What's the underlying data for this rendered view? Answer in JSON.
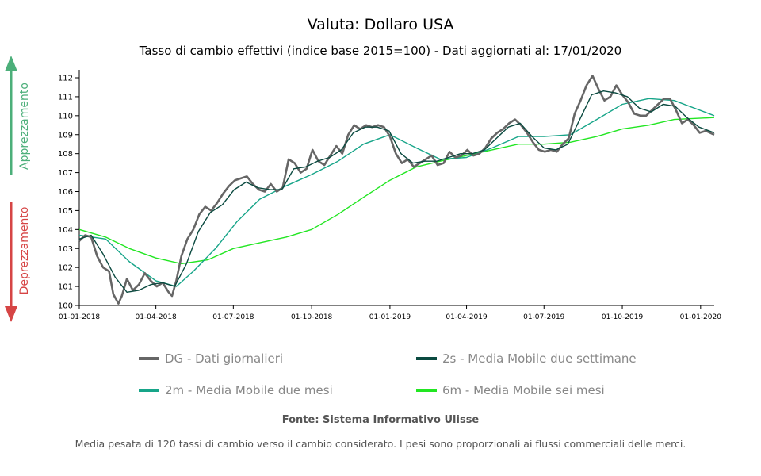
{
  "chart_data": {
    "type": "line",
    "title": "Valuta: Dollaro USA",
    "subtitle": "Tasso di cambio effettivi (indice base 2015=100) - Dati aggiornati al: 17/01/2020",
    "side_labels": {
      "up": "Apprezzamento",
      "down": "Deprezzamento"
    },
    "ylim": [
      100,
      112
    ],
    "yticks": [
      100,
      101,
      102,
      103,
      104,
      105,
      106,
      107,
      108,
      109,
      110,
      111,
      112
    ],
    "x_range": [
      "01-01-2018",
      "17-01-2020"
    ],
    "xticks": [
      "01-01-2018",
      "01-04-2018",
      "01-07-2018",
      "01-10-2018",
      "01-01-2019",
      "01-04-2019",
      "01-07-2019",
      "01-10-2019",
      "01-01-2020"
    ],
    "grid": false,
    "legend_position": "bottom",
    "colors": {
      "DG": "#666666",
      "2s": "#0b4a40",
      "2m": "#17a589",
      "6m": "#22e622",
      "up_arrow": "#4caf7a",
      "down_arrow": "#d64545"
    },
    "series": [
      {
        "key": "DG",
        "name": "DG - Dati giornalieri",
        "points": [
          [
            "2018-01-01",
            103.4
          ],
          [
            "2018-01-08",
            103.7
          ],
          [
            "2018-01-15",
            103.6
          ],
          [
            "2018-01-22",
            102.6
          ],
          [
            "2018-01-29",
            102.0
          ],
          [
            "2018-02-05",
            101.8
          ],
          [
            "2018-02-10",
            100.6
          ],
          [
            "2018-02-16",
            100.1
          ],
          [
            "2018-02-20",
            100.5
          ],
          [
            "2018-02-26",
            101.4
          ],
          [
            "2018-03-05",
            100.8
          ],
          [
            "2018-03-12",
            101.1
          ],
          [
            "2018-03-19",
            101.7
          ],
          [
            "2018-03-26",
            101.3
          ],
          [
            "2018-04-02",
            101.0
          ],
          [
            "2018-04-09",
            101.2
          ],
          [
            "2018-04-16",
            100.7
          ],
          [
            "2018-04-20",
            100.5
          ],
          [
            "2018-04-25",
            101.3
          ],
          [
            "2018-05-01",
            102.6
          ],
          [
            "2018-05-08",
            103.5
          ],
          [
            "2018-05-15",
            104.0
          ],
          [
            "2018-05-22",
            104.8
          ],
          [
            "2018-05-29",
            105.2
          ],
          [
            "2018-06-05",
            105.0
          ],
          [
            "2018-06-12",
            105.4
          ],
          [
            "2018-06-19",
            105.9
          ],
          [
            "2018-06-26",
            106.3
          ],
          [
            "2018-07-03",
            106.6
          ],
          [
            "2018-07-10",
            106.7
          ],
          [
            "2018-07-17",
            106.8
          ],
          [
            "2018-07-24",
            106.4
          ],
          [
            "2018-07-31",
            106.1
          ],
          [
            "2018-08-07",
            106.0
          ],
          [
            "2018-08-14",
            106.4
          ],
          [
            "2018-08-21",
            106.0
          ],
          [
            "2018-08-28",
            106.2
          ],
          [
            "2018-09-04",
            107.7
          ],
          [
            "2018-09-11",
            107.5
          ],
          [
            "2018-09-18",
            107.0
          ],
          [
            "2018-09-25",
            107.2
          ],
          [
            "2018-10-02",
            108.2
          ],
          [
            "2018-10-09",
            107.6
          ],
          [
            "2018-10-16",
            107.4
          ],
          [
            "2018-10-23",
            107.9
          ],
          [
            "2018-10-30",
            108.4
          ],
          [
            "2018-11-06",
            108.0
          ],
          [
            "2018-11-13",
            109.0
          ],
          [
            "2018-11-20",
            109.5
          ],
          [
            "2018-11-27",
            109.3
          ],
          [
            "2018-12-04",
            109.5
          ],
          [
            "2018-12-11",
            109.4
          ],
          [
            "2018-12-18",
            109.5
          ],
          [
            "2018-12-25",
            109.4
          ],
          [
            "2019-01-01",
            108.9
          ],
          [
            "2019-01-08",
            108.0
          ],
          [
            "2019-01-15",
            107.5
          ],
          [
            "2019-01-22",
            107.7
          ],
          [
            "2019-01-29",
            107.3
          ],
          [
            "2019-02-05",
            107.5
          ],
          [
            "2019-02-12",
            107.7
          ],
          [
            "2019-02-19",
            107.9
          ],
          [
            "2019-02-26",
            107.4
          ],
          [
            "2019-03-05",
            107.5
          ],
          [
            "2019-03-12",
            108.1
          ],
          [
            "2019-03-19",
            107.8
          ],
          [
            "2019-03-26",
            107.9
          ],
          [
            "2019-04-02",
            108.2
          ],
          [
            "2019-04-09",
            107.9
          ],
          [
            "2019-04-16",
            108.0
          ],
          [
            "2019-04-23",
            108.3
          ],
          [
            "2019-04-30",
            108.8
          ],
          [
            "2019-05-07",
            109.1
          ],
          [
            "2019-05-14",
            109.3
          ],
          [
            "2019-05-21",
            109.6
          ],
          [
            "2019-05-28",
            109.8
          ],
          [
            "2019-06-04",
            109.5
          ],
          [
            "2019-06-11",
            109.1
          ],
          [
            "2019-06-18",
            108.6
          ],
          [
            "2019-06-25",
            108.2
          ],
          [
            "2019-07-02",
            108.1
          ],
          [
            "2019-07-09",
            108.2
          ],
          [
            "2019-07-16",
            108.1
          ],
          [
            "2019-07-23",
            108.5
          ],
          [
            "2019-07-30",
            108.8
          ],
          [
            "2019-08-06",
            110.1
          ],
          [
            "2019-08-13",
            110.8
          ],
          [
            "2019-08-20",
            111.6
          ],
          [
            "2019-08-27",
            112.1
          ],
          [
            "2019-09-03",
            111.4
          ],
          [
            "2019-09-10",
            110.8
          ],
          [
            "2019-09-17",
            111.0
          ],
          [
            "2019-09-24",
            111.6
          ],
          [
            "2019-10-01",
            111.1
          ],
          [
            "2019-10-08",
            110.7
          ],
          [
            "2019-10-15",
            110.1
          ],
          [
            "2019-10-22",
            110.0
          ],
          [
            "2019-10-29",
            110.0
          ],
          [
            "2019-11-05",
            110.3
          ],
          [
            "2019-11-12",
            110.6
          ],
          [
            "2019-11-19",
            110.9
          ],
          [
            "2019-11-26",
            110.9
          ],
          [
            "2019-12-03",
            110.3
          ],
          [
            "2019-12-10",
            109.6
          ],
          [
            "2019-12-17",
            109.8
          ],
          [
            "2019-12-24",
            109.5
          ],
          [
            "2019-12-31",
            109.1
          ],
          [
            "2020-01-07",
            109.2
          ],
          [
            "2020-01-17",
            109.0
          ]
        ]
      },
      {
        "key": "2s",
        "name": "2s - Media Mobile due settimane",
        "points": [
          [
            "2018-01-01",
            103.5
          ],
          [
            "2018-01-15",
            103.7
          ],
          [
            "2018-01-29",
            102.7
          ],
          [
            "2018-02-12",
            101.5
          ],
          [
            "2018-02-26",
            100.7
          ],
          [
            "2018-03-12",
            100.8
          ],
          [
            "2018-03-26",
            101.1
          ],
          [
            "2018-04-09",
            101.2
          ],
          [
            "2018-04-23",
            101.0
          ],
          [
            "2018-05-07",
            102.2
          ],
          [
            "2018-05-21",
            103.9
          ],
          [
            "2018-06-04",
            104.9
          ],
          [
            "2018-06-18",
            105.3
          ],
          [
            "2018-07-02",
            106.1
          ],
          [
            "2018-07-16",
            106.5
          ],
          [
            "2018-07-30",
            106.2
          ],
          [
            "2018-08-13",
            106.1
          ],
          [
            "2018-08-27",
            106.1
          ],
          [
            "2018-09-10",
            107.2
          ],
          [
            "2018-09-24",
            107.3
          ],
          [
            "2018-10-08",
            107.6
          ],
          [
            "2018-10-22",
            107.8
          ],
          [
            "2018-11-05",
            108.2
          ],
          [
            "2018-11-19",
            109.1
          ],
          [
            "2018-12-03",
            109.4
          ],
          [
            "2018-12-17",
            109.4
          ],
          [
            "2018-12-31",
            109.2
          ],
          [
            "2019-01-14",
            108.0
          ],
          [
            "2019-01-28",
            107.5
          ],
          [
            "2019-02-11",
            107.6
          ],
          [
            "2019-02-25",
            107.6
          ],
          [
            "2019-03-11",
            107.8
          ],
          [
            "2019-03-25",
            108.0
          ],
          [
            "2019-04-08",
            108.0
          ],
          [
            "2019-04-22",
            108.2
          ],
          [
            "2019-05-06",
            108.8
          ],
          [
            "2019-05-20",
            109.4
          ],
          [
            "2019-06-03",
            109.6
          ],
          [
            "2019-06-17",
            108.9
          ],
          [
            "2019-07-01",
            108.3
          ],
          [
            "2019-07-15",
            108.2
          ],
          [
            "2019-07-29",
            108.5
          ],
          [
            "2019-08-12",
            109.8
          ],
          [
            "2019-08-26",
            111.1
          ],
          [
            "2019-09-09",
            111.3
          ],
          [
            "2019-09-23",
            111.2
          ],
          [
            "2019-10-07",
            111.0
          ],
          [
            "2019-10-21",
            110.4
          ],
          [
            "2019-11-04",
            110.2
          ],
          [
            "2019-11-18",
            110.6
          ],
          [
            "2019-12-02",
            110.5
          ],
          [
            "2019-12-16",
            109.9
          ],
          [
            "2019-12-30",
            109.4
          ],
          [
            "2020-01-17",
            109.1
          ]
        ]
      },
      {
        "key": "2m",
        "name": "2m - Media Mobile due mesi",
        "points": [
          [
            "2018-01-01",
            103.7
          ],
          [
            "2018-02-01",
            103.5
          ],
          [
            "2018-03-01",
            102.3
          ],
          [
            "2018-04-01",
            101.3
          ],
          [
            "2018-04-25",
            101.0
          ],
          [
            "2018-05-15",
            101.8
          ],
          [
            "2018-06-10",
            103.0
          ],
          [
            "2018-07-05",
            104.4
          ],
          [
            "2018-08-01",
            105.6
          ],
          [
            "2018-09-01",
            106.3
          ],
          [
            "2018-10-01",
            106.9
          ],
          [
            "2018-11-01",
            107.6
          ],
          [
            "2018-12-01",
            108.5
          ],
          [
            "2019-01-01",
            109.0
          ],
          [
            "2019-02-01",
            108.3
          ],
          [
            "2019-03-01",
            107.7
          ],
          [
            "2019-04-01",
            107.8
          ],
          [
            "2019-05-01",
            108.3
          ],
          [
            "2019-06-01",
            108.9
          ],
          [
            "2019-07-01",
            108.9
          ],
          [
            "2019-08-01",
            109.0
          ],
          [
            "2019-09-01",
            109.8
          ],
          [
            "2019-10-01",
            110.6
          ],
          [
            "2019-11-01",
            110.9
          ],
          [
            "2019-12-01",
            110.8
          ],
          [
            "2020-01-17",
            110.0
          ]
        ]
      },
      {
        "key": "6m",
        "name": "6m - Media Mobile sei mesi",
        "points": [
          [
            "2018-01-01",
            104.0
          ],
          [
            "2018-02-01",
            103.6
          ],
          [
            "2018-03-01",
            103.0
          ],
          [
            "2018-04-01",
            102.5
          ],
          [
            "2018-05-01",
            102.2
          ],
          [
            "2018-06-01",
            102.4
          ],
          [
            "2018-07-01",
            103.0
          ],
          [
            "2018-08-01",
            103.3
          ],
          [
            "2018-09-01",
            103.6
          ],
          [
            "2018-10-01",
            104.0
          ],
          [
            "2018-11-01",
            104.8
          ],
          [
            "2018-12-01",
            105.7
          ],
          [
            "2019-01-01",
            106.6
          ],
          [
            "2019-02-01",
            107.3
          ],
          [
            "2019-03-01",
            107.6
          ],
          [
            "2019-04-01",
            107.9
          ],
          [
            "2019-05-01",
            108.2
          ],
          [
            "2019-06-01",
            108.5
          ],
          [
            "2019-07-01",
            108.5
          ],
          [
            "2019-08-01",
            108.6
          ],
          [
            "2019-09-01",
            108.9
          ],
          [
            "2019-10-01",
            109.3
          ],
          [
            "2019-11-01",
            109.5
          ],
          [
            "2019-12-01",
            109.8
          ],
          [
            "2020-01-17",
            109.9
          ]
        ]
      }
    ]
  },
  "source": "Fonte: Sistema Informativo Ulisse",
  "footnote": "Media pesata di 120 tassi di cambio verso il cambio considerato. I pesi sono proporzionali ai flussi commerciali delle merci."
}
